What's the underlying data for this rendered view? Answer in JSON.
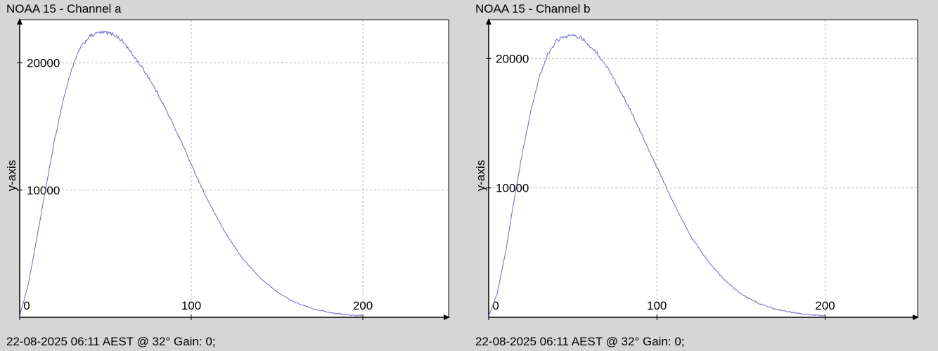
{
  "chart_data": [
    {
      "type": "line",
      "title": "NOAA 15 - Channel a",
      "footer": "22-08-2025 06:11 AEST @ 32° Gain: 0;",
      "xlabel": "",
      "ylabel": "y-axis",
      "xlim": [
        0,
        250
      ],
      "ylim": [
        0,
        23400
      ],
      "grid": true,
      "x_ticks": [
        0,
        100,
        200
      ],
      "y_ticks": [
        10000,
        20000
      ],
      "line_color": "#6666cc",
      "series": [
        {
          "x": [
            0,
            5,
            10,
            15,
            20,
            25,
            30,
            35,
            40,
            45,
            50,
            55,
            60,
            65,
            70,
            75,
            80,
            85,
            90,
            95,
            100,
            110,
            120,
            130,
            140,
            150,
            160,
            170,
            180,
            190,
            200
          ],
          "y": [
            100,
            2600,
            6200,
            10000,
            13700,
            16900,
            19400,
            21100,
            22000,
            22350,
            22400,
            22250,
            21700,
            20800,
            19900,
            18900,
            17700,
            16400,
            15000,
            13600,
            12000,
            9100,
            6600,
            4600,
            3100,
            2000,
            1200,
            700,
            400,
            200,
            120
          ]
        }
      ]
    },
    {
      "type": "line",
      "title": "NOAA 15 - Channel b",
      "footer": "22-08-2025 06:11 AEST @ 32° Gain: 0;",
      "xlabel": "",
      "ylabel": "y-axis",
      "xlim": [
        0,
        255
      ],
      "ylim": [
        0,
        23000
      ],
      "grid": true,
      "x_ticks": [
        0,
        100,
        200
      ],
      "y_ticks": [
        10000,
        20000
      ],
      "line_color": "#6666cc",
      "series": [
        {
          "x": [
            0,
            5,
            10,
            15,
            20,
            25,
            30,
            35,
            40,
            45,
            50,
            55,
            60,
            65,
            70,
            75,
            80,
            85,
            90,
            95,
            100,
            110,
            120,
            130,
            140,
            150,
            160,
            170,
            180,
            190,
            200
          ],
          "y": [
            100,
            1800,
            5000,
            9000,
            12700,
            15900,
            18500,
            20300,
            21300,
            21700,
            21800,
            21600,
            21000,
            20300,
            19400,
            18300,
            17100,
            15800,
            14400,
            13000,
            11600,
            8800,
            6300,
            4400,
            2900,
            1800,
            1100,
            650,
            380,
            200,
            120
          ]
        }
      ]
    }
  ]
}
